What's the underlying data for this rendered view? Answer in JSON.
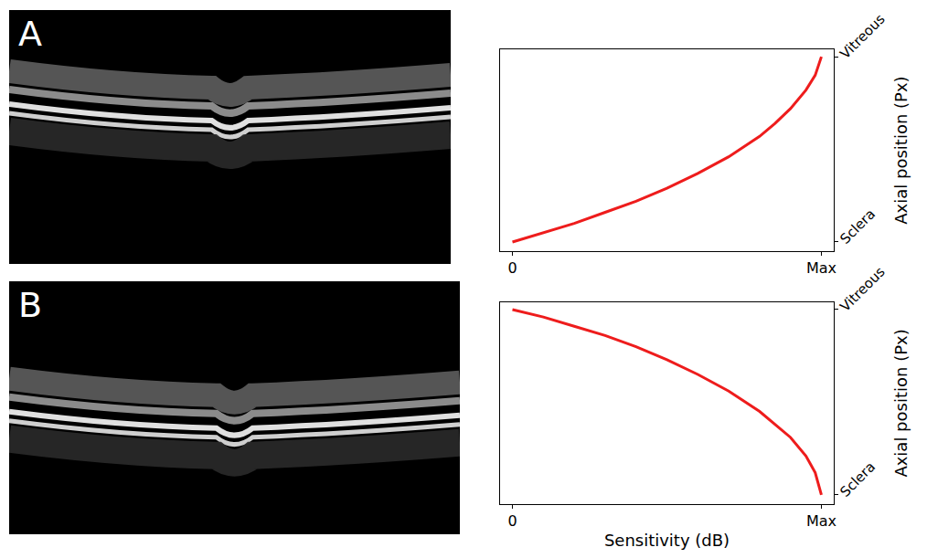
{
  "chart_data": [
    {
      "type": "line",
      "panel": "A",
      "y_label": "Axial position (Px)",
      "x": [
        0,
        0.1,
        0.2,
        0.3,
        0.4,
        0.5,
        0.6,
        0.7,
        0.8,
        0.85,
        0.9,
        0.95,
        0.98,
        1.0
      ],
      "series": [
        {
          "name": "A",
          "color": "#ee1c1c",
          "values": [
            0.0,
            0.05,
            0.1,
            0.16,
            0.22,
            0.29,
            0.37,
            0.46,
            0.57,
            0.64,
            0.72,
            0.82,
            0.9,
            1.0
          ]
        }
      ],
      "xlim": [
        -0.04,
        1.04
      ],
      "ylim": [
        -0.05,
        1.04
      ],
      "xticks": [
        0,
        {
          "value": 1,
          "label": "Max"
        }
      ],
      "yticks": [
        {
          "value": 0,
          "label": "Sclera"
        },
        {
          "value": 1,
          "label": "Vitreous"
        }
      ],
      "grid": false
    },
    {
      "type": "line",
      "panel": "B",
      "x_label": "Sensitivity (dB)",
      "y_label": "Axial position (Px)",
      "x": [
        0,
        0.1,
        0.2,
        0.3,
        0.4,
        0.5,
        0.6,
        0.7,
        0.8,
        0.85,
        0.9,
        0.95,
        0.98,
        1.0
      ],
      "series": [
        {
          "name": "B",
          "color": "#ee1c1c",
          "values": [
            1.0,
            0.96,
            0.91,
            0.86,
            0.8,
            0.73,
            0.65,
            0.56,
            0.45,
            0.38,
            0.31,
            0.21,
            0.12,
            0.0
          ]
        }
      ],
      "xlim": [
        -0.04,
        1.04
      ],
      "ylim": [
        -0.05,
        1.04
      ],
      "xticks": [
        0,
        {
          "value": 1,
          "label": "Max"
        }
      ],
      "yticks": [
        {
          "value": 0,
          "label": "Sclera"
        },
        {
          "value": 1,
          "label": "Vitreous"
        }
      ],
      "grid": false
    }
  ]
}
